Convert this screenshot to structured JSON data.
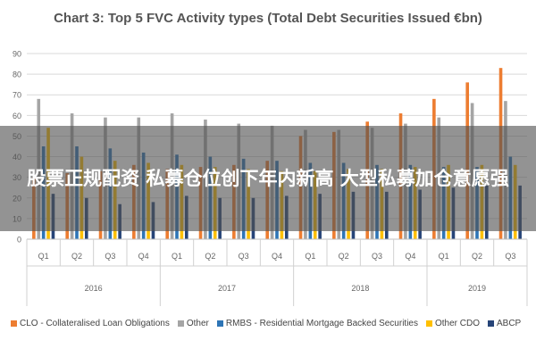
{
  "chart_data": {
    "type": "bar",
    "title": "Chart 3: Top 5 FVC Activity types (Total Debt Securities Issued €bn)",
    "ylim": [
      0,
      90
    ],
    "yticks": [
      0,
      10,
      20,
      30,
      40,
      50,
      60,
      70,
      80,
      90
    ],
    "grid": true,
    "legend_position": "bottom",
    "years": [
      {
        "label": "2016",
        "span": 4
      },
      {
        "label": "2017",
        "span": 4
      },
      {
        "label": "2018",
        "span": 4
      },
      {
        "label": "2019",
        "span": 3
      }
    ],
    "categories": [
      "Q1",
      "Q2",
      "Q3",
      "Q4",
      "Q1",
      "Q2",
      "Q3",
      "Q4",
      "Q1",
      "Q2",
      "Q3",
      "Q4",
      "Q1",
      "Q2",
      "Q3"
    ],
    "series": [
      {
        "name": "CLO - Collateralised Loan Obligations",
        "color": "#ed7d31",
        "values": [
          30,
          32,
          33,
          36,
          34,
          35,
          36,
          38,
          50,
          52,
          57,
          61,
          68,
          76,
          83
        ]
      },
      {
        "name": "Other",
        "color": "#a5a5a5",
        "values": [
          68,
          61,
          59,
          59,
          61,
          58,
          56,
          55,
          53,
          53,
          54,
          56,
          59,
          66,
          67
        ]
      },
      {
        "name": "RMBS - Residential Mortgage Backed Securities",
        "color": "#2e75b6",
        "values": [
          45,
          45,
          44,
          42,
          41,
          40,
          39,
          38,
          37,
          37,
          36,
          36,
          35,
          35,
          40
        ]
      },
      {
        "name": "Other CDO",
        "color": "#ffc000",
        "values": [
          54,
          40,
          38,
          37,
          36,
          35,
          34,
          33,
          33,
          34,
          34,
          35,
          36,
          36,
          36
        ]
      },
      {
        "name": "ABCP",
        "color": "#264478",
        "values": [
          22,
          20,
          17,
          18,
          21,
          20,
          20,
          21,
          22,
          23,
          23,
          24,
          25,
          26,
          26
        ]
      }
    ]
  },
  "overlay": {
    "text": "股票正规配资 私募仓位创下年内新高 大型私募加仓意愿强"
  }
}
